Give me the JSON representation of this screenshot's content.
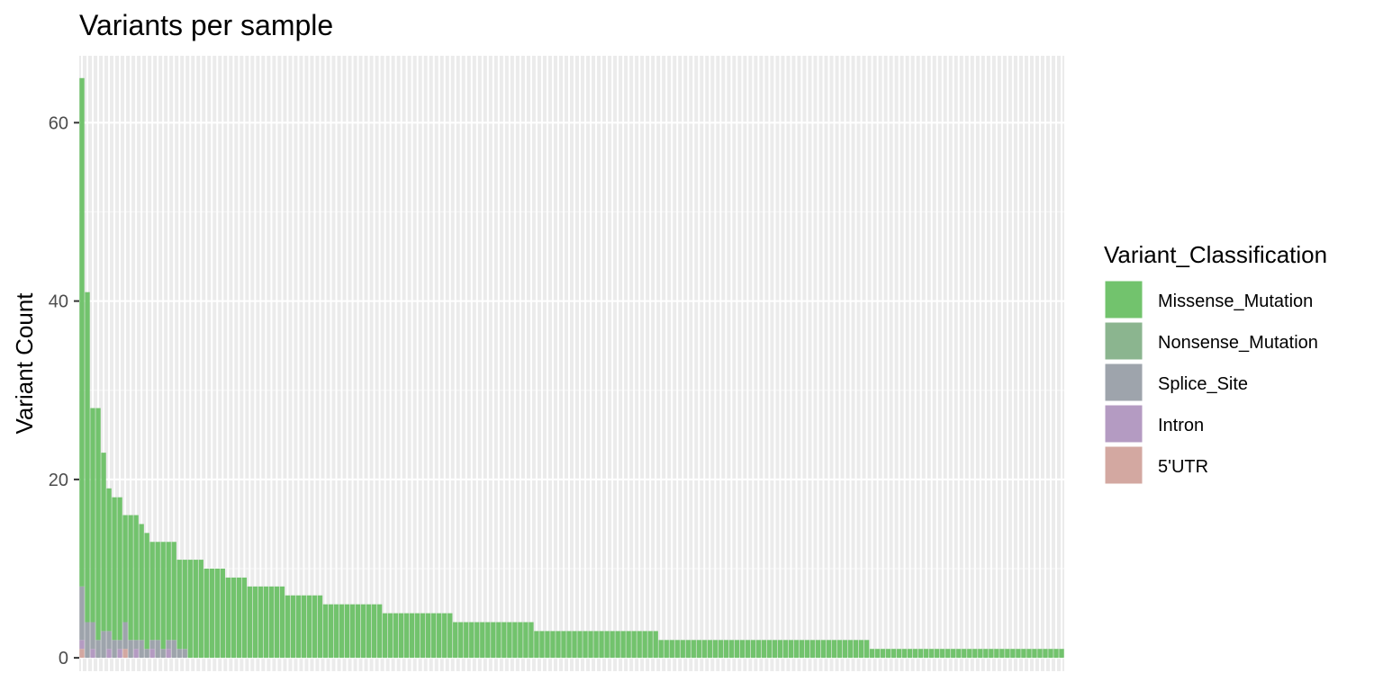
{
  "chart_data": {
    "type": "bar",
    "stacked": true,
    "title": "Variants per sample",
    "xlabel": "",
    "ylabel": "Variant Count",
    "ylim": [
      -1.5,
      67.5
    ],
    "y_ticks": [
      0,
      20,
      40,
      60
    ],
    "grid": true,
    "legend_position": "right",
    "legend": {
      "title": "Variant_Classification",
      "entries": [
        {
          "name": "Missense_Mutation",
          "color": "#72C36D"
        },
        {
          "name": "Nonsense_Mutation",
          "color": "#8BB58F"
        },
        {
          "name": "Splice_Site",
          "color": "#9EA4AC"
        },
        {
          "name": "Intron",
          "color": "#B49BC2"
        },
        {
          "name": "5'UTR",
          "color": "#D3A8A1"
        }
      ]
    },
    "sample_count": 182,
    "sample_totals_runs": [
      [
        65,
        1
      ],
      [
        41,
        1
      ],
      [
        28,
        2
      ],
      [
        23,
        1
      ],
      [
        19,
        1
      ],
      [
        18,
        2
      ],
      [
        16,
        3
      ],
      [
        15,
        1
      ],
      [
        14,
        1
      ],
      [
        13,
        5
      ],
      [
        11,
        5
      ],
      [
        10,
        4
      ],
      [
        9,
        4
      ],
      [
        8,
        7
      ],
      [
        7,
        7
      ],
      [
        6,
        11
      ],
      [
        5,
        13
      ],
      [
        4,
        15
      ],
      [
        3,
        23
      ],
      [
        2,
        39
      ],
      [
        1,
        36
      ]
    ],
    "minor_class_counts_first_samples": {
      "Splice_Site": [
        6,
        4,
        3,
        2,
        3,
        2,
        2,
        1,
        3,
        2,
        1,
        2,
        1,
        1,
        2,
        1,
        1,
        2,
        1,
        1
      ],
      "Intron": [
        1,
        0,
        1,
        0,
        0,
        1,
        0,
        1,
        0,
        0,
        1,
        0,
        0,
        1,
        0,
        0,
        1,
        0,
        0,
        0
      ],
      "5'UTR": [
        1,
        0,
        0,
        0,
        0,
        0,
        0,
        0,
        1,
        0,
        0,
        0,
        0,
        0,
        0,
        0,
        0,
        0,
        0,
        0
      ]
    }
  }
}
